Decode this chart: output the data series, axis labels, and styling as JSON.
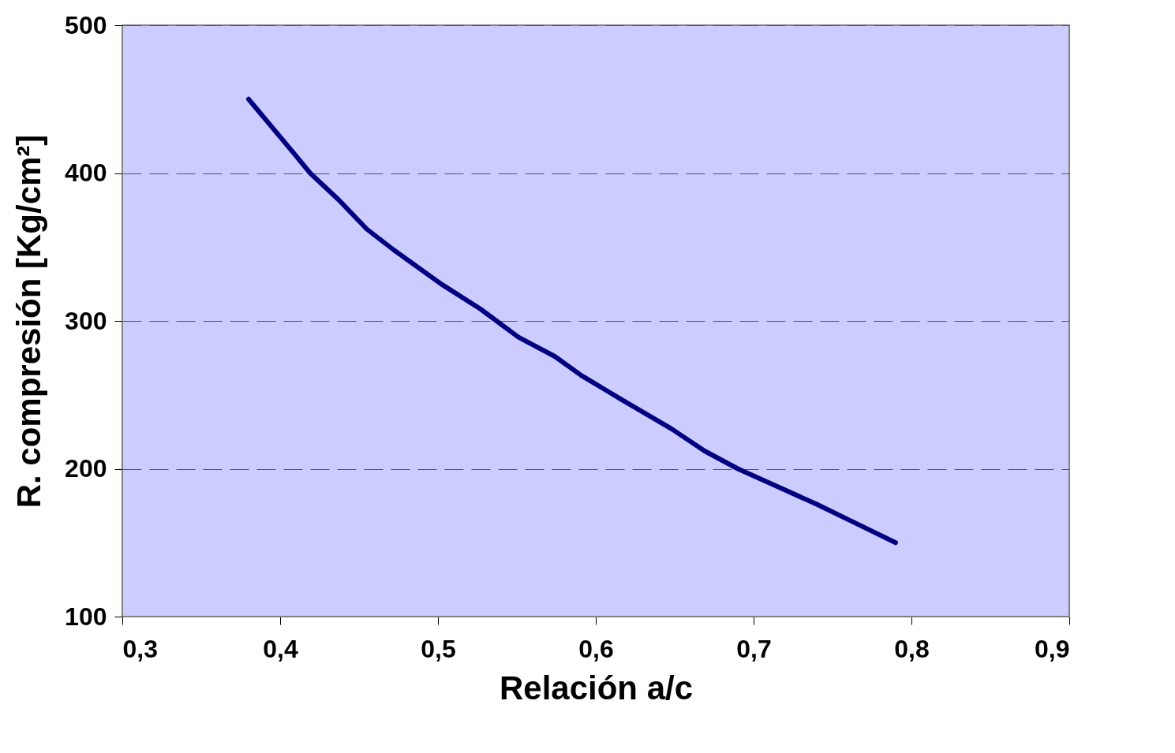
{
  "chart_data": {
    "type": "line",
    "xlabel": "Relación a/c",
    "ylabel": "R. compresión [Kg/cm²]",
    "x": [
      0.38,
      0.409,
      0.419,
      0.437,
      0.455,
      0.472,
      0.502,
      0.527,
      0.551,
      0.574,
      0.591,
      0.616,
      0.648,
      0.669,
      0.69,
      0.715,
      0.74,
      0.765,
      0.79
    ],
    "series": [
      {
        "color": "#000080",
        "values": [
          450,
          413,
          400,
          382,
          362,
          348,
          325,
          308,
          289,
          276,
          263,
          247,
          227,
          212,
          200,
          188,
          176,
          163,
          150
        ]
      }
    ],
    "xlim": [
      0.3,
      0.9
    ],
    "ylim": [
      100,
      500
    ],
    "xticks": [
      {
        "value": 0.3,
        "label": "0,3"
      },
      {
        "value": 0.4,
        "label": "0,4"
      },
      {
        "value": 0.5,
        "label": "0,5"
      },
      {
        "value": 0.6,
        "label": "0,6"
      },
      {
        "value": 0.7,
        "label": "0,7"
      },
      {
        "value": 0.8,
        "label": "0,8"
      },
      {
        "value": 0.9,
        "label": "0,9"
      }
    ],
    "yticks": [
      100,
      200,
      300,
      400,
      500
    ],
    "grid": "y",
    "marker": "none",
    "line_style": "solid"
  }
}
